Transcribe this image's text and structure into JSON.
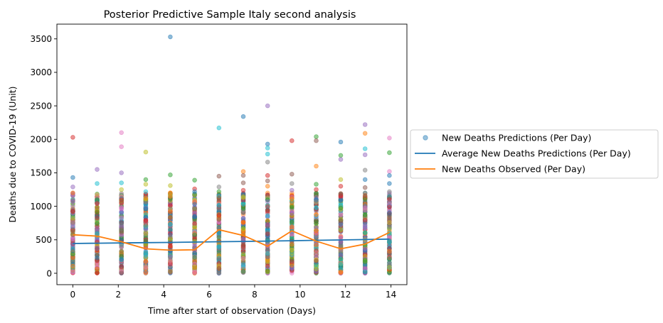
{
  "chart_data": {
    "type": "scatter",
    "title": "Posterior Predictive Sample Italy second analysis",
    "xlabel": "Time after start of observation (Days)",
    "ylabel": "Deaths due to COVID-19 (Unit)",
    "xlim": [
      -0.7,
      14.7
    ],
    "ylim": [
      -170,
      3720
    ],
    "xticks": [
      0,
      2,
      4,
      6,
      8,
      10,
      12,
      14
    ],
    "yticks": [
      0,
      500,
      1000,
      1500,
      2000,
      2500,
      3000,
      3500
    ],
    "legend": {
      "placement": "right-outside",
      "entries": [
        "New Deaths Predictions (Per Day)",
        "Average New Deaths Predictions (Per Day)",
        "New Deaths Observed (Per Day)"
      ]
    },
    "series": [
      {
        "name": "New Deaths Predictions (Per Day)",
        "kind": "scatter",
        "x": [
          0,
          1.07,
          2.14,
          3.21,
          4.29,
          5.36,
          6.43,
          7.5,
          8.57,
          9.64,
          10.71,
          11.79,
          12.86,
          13.93
        ],
        "bulk_range": [
          0,
          1200
        ],
        "outliers": [
          [
            0,
            2030
          ],
          [
            0,
            1430
          ],
          [
            0,
            1290
          ],
          [
            0,
            1200
          ],
          [
            1.07,
            1550
          ],
          [
            1.07,
            1340
          ],
          [
            1.07,
            1180
          ],
          [
            2.14,
            2100
          ],
          [
            2.14,
            1890
          ],
          [
            2.14,
            1500
          ],
          [
            2.14,
            1350
          ],
          [
            2.14,
            1250
          ],
          [
            3.21,
            1810
          ],
          [
            3.21,
            1400
          ],
          [
            3.21,
            1330
          ],
          [
            3.21,
            1220
          ],
          [
            4.29,
            3530
          ],
          [
            4.29,
            1470
          ],
          [
            4.29,
            1310
          ],
          [
            4.29,
            1200
          ],
          [
            5.36,
            1390
          ],
          [
            5.36,
            1260
          ],
          [
            5.36,
            1220
          ],
          [
            6.43,
            2170
          ],
          [
            6.43,
            1450
          ],
          [
            6.43,
            1290
          ],
          [
            6.43,
            1220
          ],
          [
            7.5,
            2340
          ],
          [
            7.5,
            1520
          ],
          [
            7.5,
            1460
          ],
          [
            7.5,
            1350
          ],
          [
            7.5,
            1240
          ],
          [
            8.57,
            2500
          ],
          [
            8.57,
            1930
          ],
          [
            8.57,
            1870
          ],
          [
            8.57,
            1780
          ],
          [
            8.57,
            1660
          ],
          [
            8.57,
            1460
          ],
          [
            8.57,
            1380
          ],
          [
            8.57,
            1300
          ],
          [
            9.64,
            1980
          ],
          [
            9.64,
            1480
          ],
          [
            9.64,
            1340
          ],
          [
            9.64,
            1240
          ],
          [
            10.71,
            2040
          ],
          [
            10.71,
            1980
          ],
          [
            10.71,
            1600
          ],
          [
            10.71,
            1330
          ],
          [
            10.71,
            1250
          ],
          [
            11.79,
            1960
          ],
          [
            11.79,
            1760
          ],
          [
            11.79,
            1700
          ],
          [
            11.79,
            1400
          ],
          [
            11.79,
            1300
          ],
          [
            12.86,
            2220
          ],
          [
            12.86,
            2090
          ],
          [
            12.86,
            1860
          ],
          [
            12.86,
            1770
          ],
          [
            12.86,
            1540
          ],
          [
            12.86,
            1400
          ],
          [
            12.86,
            1280
          ],
          [
            13.93,
            2020
          ],
          [
            13.93,
            1800
          ],
          [
            13.93,
            1520
          ],
          [
            13.93,
            1460
          ],
          [
            13.93,
            1340
          ],
          [
            13.93,
            1220
          ]
        ]
      },
      {
        "name": "Average New Deaths Predictions (Per Day)",
        "kind": "line",
        "color": "#1f77b4",
        "x": [
          0,
          1.07,
          2.14,
          3.21,
          4.29,
          5.36,
          6.43,
          7.5,
          8.57,
          9.64,
          10.71,
          11.79,
          12.86,
          13.93
        ],
        "y": [
          445,
          449,
          453,
          457,
          461,
          466,
          471,
          476,
          481,
          486,
          492,
          498,
          504,
          511
        ]
      },
      {
        "name": "New Deaths Observed (Per Day)",
        "kind": "line",
        "color": "#ff7f0e",
        "x": [
          0,
          1.07,
          2.14,
          3.21,
          4.29,
          5.36,
          6.43,
          7.5,
          8.57,
          9.64,
          10.71,
          11.79,
          12.86,
          13.93
        ],
        "y": [
          575,
          555,
          470,
          365,
          345,
          350,
          650,
          565,
          405,
          635,
          480,
          365,
          435,
          610
        ]
      }
    ],
    "colors": [
      "#1f77b4",
      "#ff7f0e",
      "#2ca02c",
      "#d62728",
      "#9467bd",
      "#8c564b",
      "#e377c2",
      "#7f7f7f",
      "#bcbd22",
      "#17becf"
    ]
  }
}
